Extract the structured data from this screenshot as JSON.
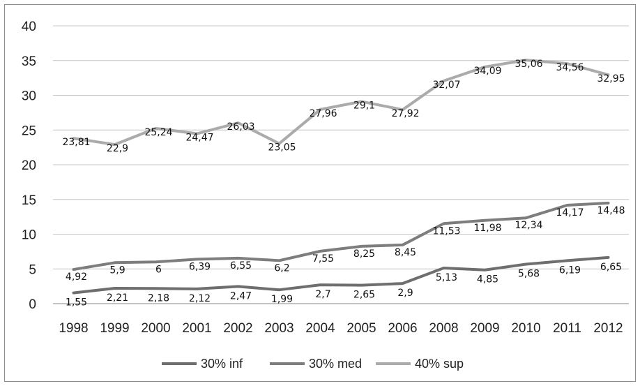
{
  "chart_data": {
    "type": "line",
    "title": "",
    "xlabel": "",
    "ylabel": "",
    "categories": [
      "1998",
      "1999",
      "2000",
      "2001",
      "2002",
      "2003",
      "2004",
      "2005",
      "2006",
      "2008",
      "2009",
      "2010",
      "2011",
      "2012"
    ],
    "ylim": [
      0,
      40
    ],
    "yticks": [
      0,
      5,
      10,
      15,
      20,
      25,
      30,
      35,
      40
    ],
    "grid": "horizontal",
    "legend_position": "bottom",
    "series": [
      {
        "name": "30% inf",
        "color": "#6e6e6e",
        "values": [
          1.55,
          2.21,
          2.18,
          2.12,
          2.47,
          1.99,
          2.7,
          2.65,
          2.9,
          5.13,
          4.85,
          5.68,
          6.19,
          6.65
        ],
        "labels": [
          "1,55",
          "2,21",
          "2,18",
          "2,12",
          "2,47",
          "1,99",
          "2,7",
          "2,65",
          "2,9",
          "5,13",
          "4,85",
          "5,68",
          "6,19",
          "6,65"
        ]
      },
      {
        "name": "30% med",
        "color": "#7d7d7d",
        "values": [
          4.92,
          5.9,
          6,
          6.39,
          6.55,
          6.2,
          7.55,
          8.25,
          8.45,
          11.53,
          11.98,
          12.34,
          14.17,
          14.48
        ],
        "labels": [
          "4,92",
          "5,9",
          "6",
          "6,39",
          "6,55",
          "6,2",
          "7,55",
          "8,25",
          "8,45",
          "11,53",
          "11,98",
          "12,34",
          "14,17",
          "14,48"
        ]
      },
      {
        "name": "40% sup",
        "color": "#ababab",
        "values": [
          23.81,
          22.9,
          25.24,
          24.47,
          26.03,
          23.05,
          27.96,
          29.1,
          27.92,
          32.07,
          34.09,
          35.06,
          34.56,
          32.95
        ],
        "labels": [
          "23,81",
          "22,9",
          "25,24",
          "24,47",
          "26,03",
          "23,05",
          "27,96",
          "29,1",
          "27,92",
          "32,07",
          "34,09",
          "35,06",
          "34,56",
          "32,95"
        ]
      }
    ]
  }
}
